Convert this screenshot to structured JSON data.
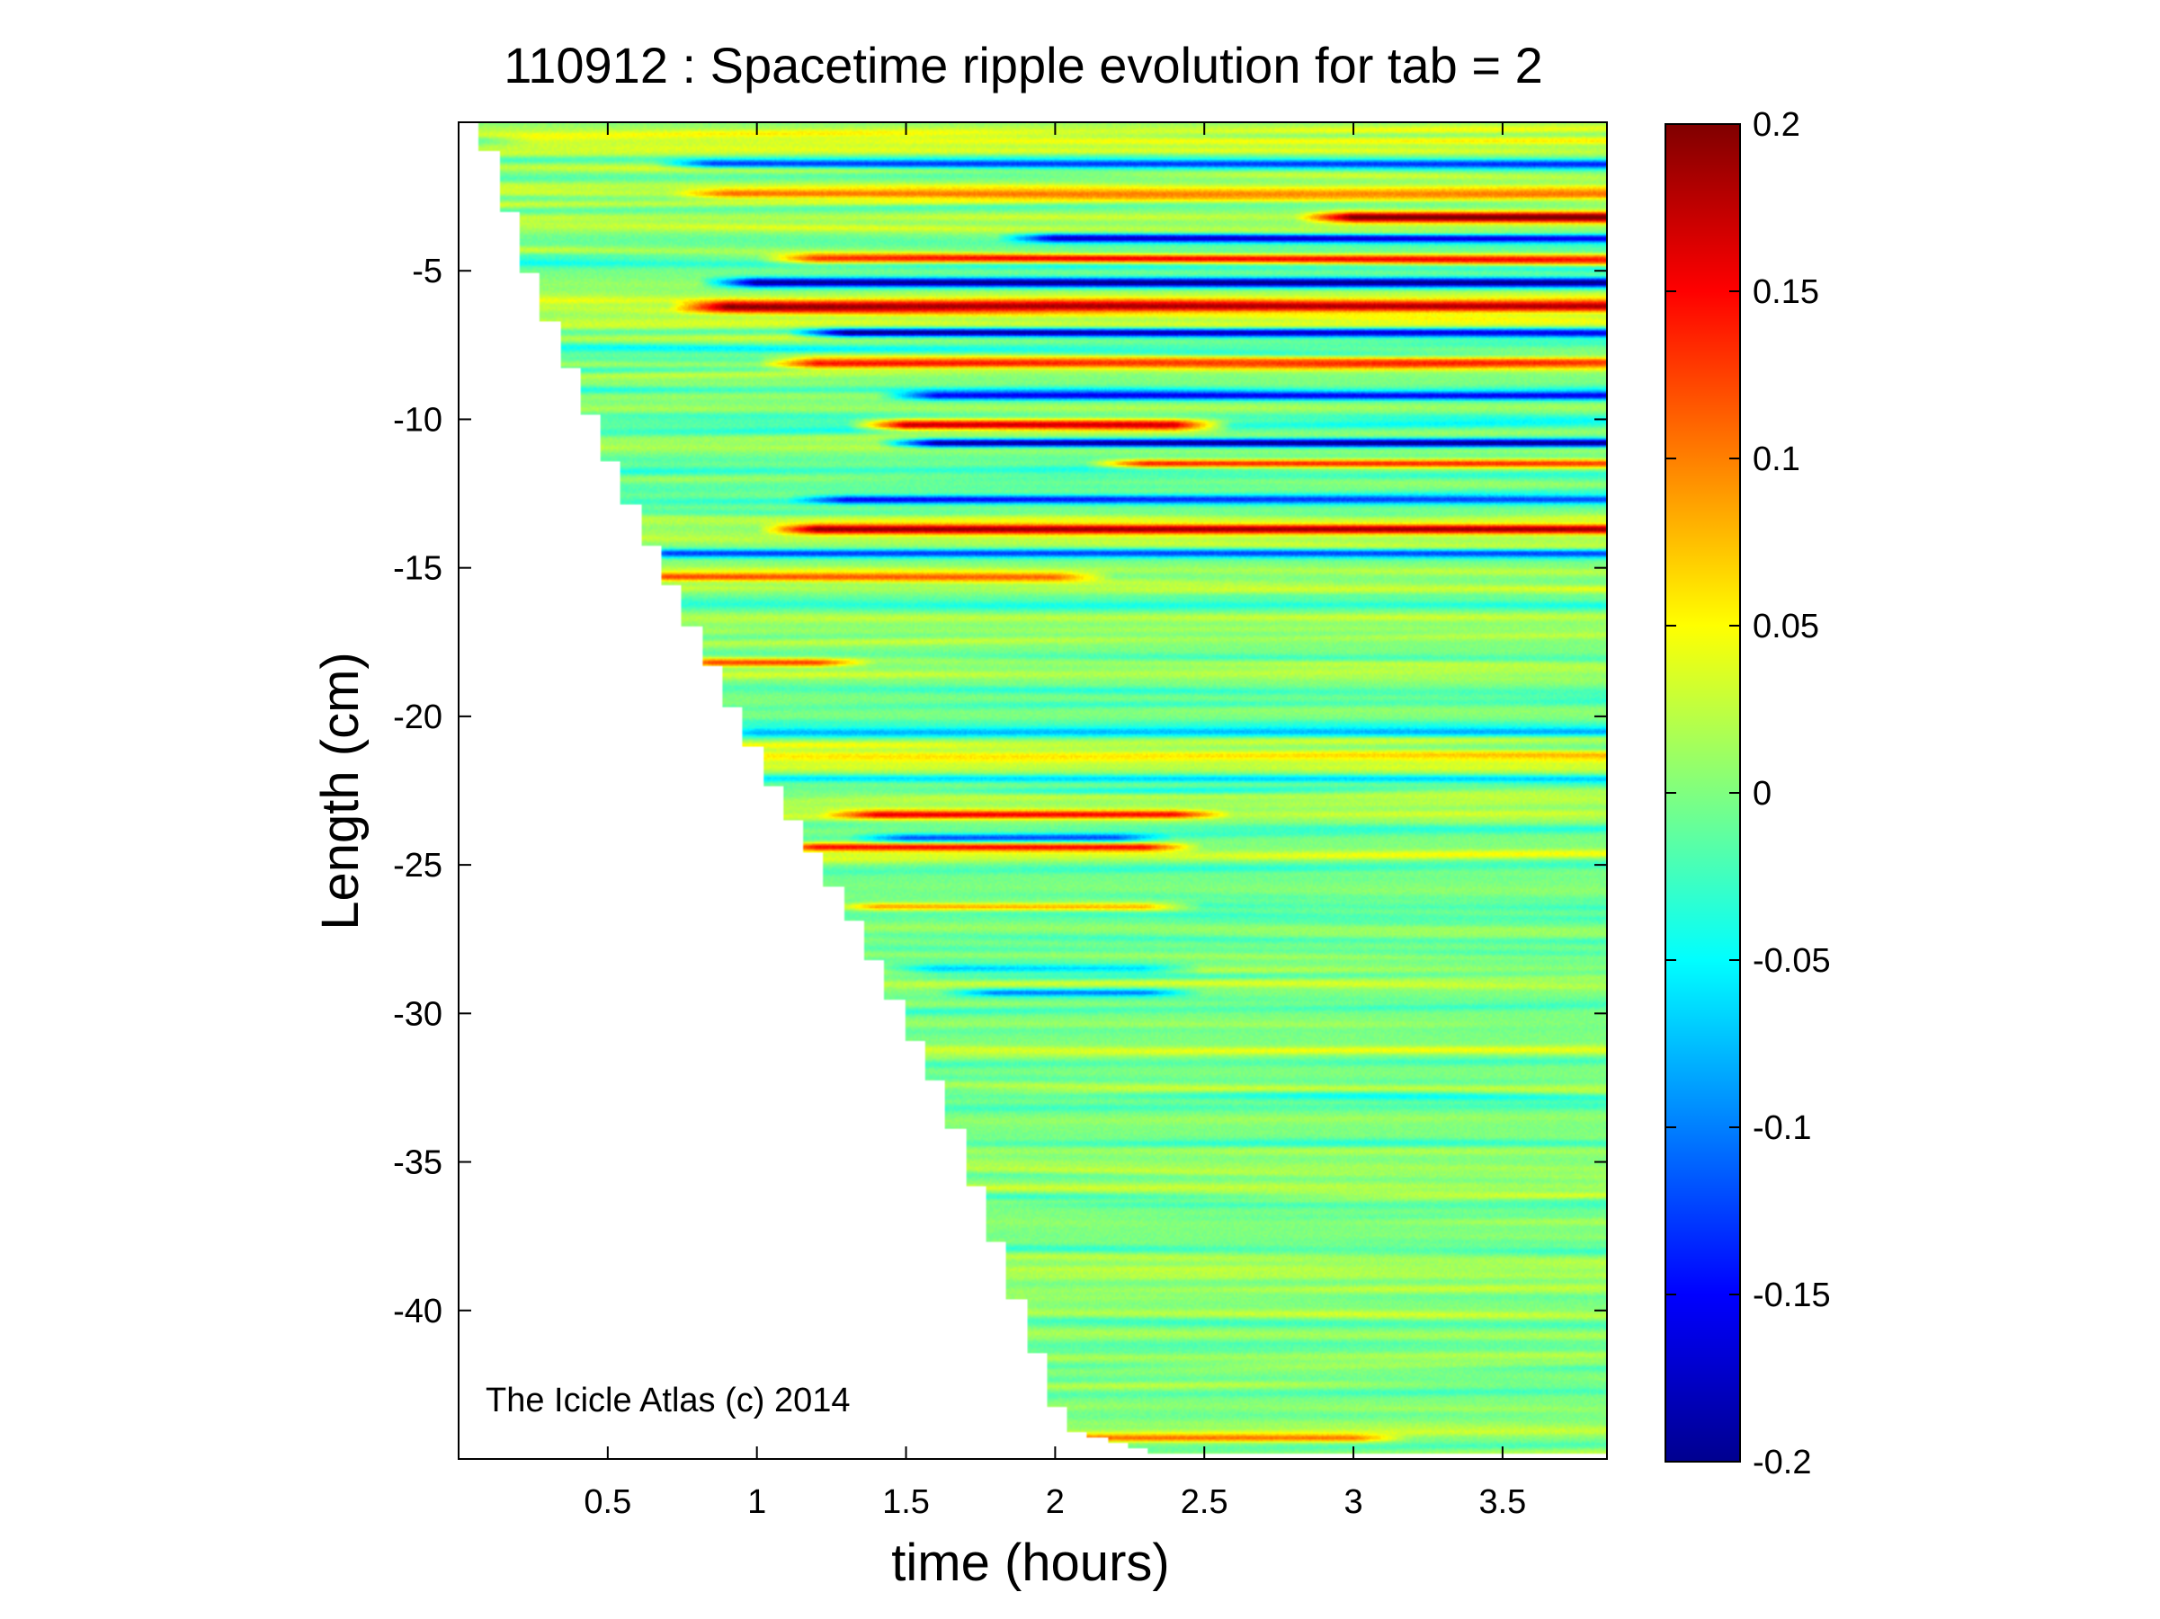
{
  "chart_data": {
    "type": "heatmap",
    "title": "110912 : Spacetime ripple evolution for tab = 2",
    "xlabel": "time (hours)",
    "ylabel": "Length (cm)",
    "xlim": [
      0,
      3.85
    ],
    "ylim": [
      -45,
      0
    ],
    "xticks": [
      0.5,
      1,
      1.5,
      2,
      2.5,
      3,
      3.5
    ],
    "xtick_labels": [
      "0.5",
      "1",
      "1.5",
      "2",
      "2.5",
      "3",
      "3.5"
    ],
    "yticks": [
      -5,
      -10,
      -15,
      -20,
      -25,
      -30,
      -35,
      -40
    ],
    "ytick_labels": [
      "-5",
      "-10",
      "-15",
      "-20",
      "-25",
      "-30",
      "-35",
      "-40"
    ],
    "colorbar": {
      "colormap": "jet",
      "range": [
        -0.2,
        0.2
      ],
      "ticks": [
        0.2,
        0.15,
        0.1,
        0.05,
        0,
        -0.05,
        -0.1,
        -0.15,
        -0.2
      ],
      "tick_labels": [
        "0.2",
        "0.15",
        "0.1",
        "0.05",
        "0",
        "-0.05",
        "-0.1",
        "-0.15",
        "-0.2"
      ]
    },
    "growth_front": {
      "description_time_hours": [
        0,
        0.07,
        0.2,
        0.5,
        0.8,
        1.0,
        1.3,
        1.6,
        1.85,
        2.0,
        2.3,
        3.85
      ],
      "length_cm": [
        0,
        -1,
        -5,
        -12,
        -18,
        -22,
        -27,
        -33,
        -40,
        -44,
        -44.8,
        -44.8
      ]
    },
    "features": [
      {
        "y": -0.6,
        "x_start": 0.25,
        "x_end": 3.85,
        "amp": 0.06,
        "width": 0.4
      },
      {
        "y": -1.4,
        "x_start": 0.85,
        "x_end": 3.85,
        "amp": -0.13,
        "width": 0.35
      },
      {
        "y": -2.4,
        "x_start": 0.9,
        "x_end": 3.85,
        "amp": 0.09,
        "width": 0.4
      },
      {
        "y": -3.2,
        "x_start": 3.0,
        "x_end": 3.85,
        "amp": 0.19,
        "width": 0.45
      },
      {
        "y": -3.9,
        "x_start": 2.0,
        "x_end": 3.85,
        "amp": -0.17,
        "width": 0.35
      },
      {
        "y": -4.6,
        "x_start": 1.2,
        "x_end": 3.85,
        "amp": 0.13,
        "width": 0.4
      },
      {
        "y": -5.4,
        "x_start": 1.0,
        "x_end": 3.85,
        "amp": -0.2,
        "width": 0.4
      },
      {
        "y": -6.2,
        "x_start": 0.9,
        "x_end": 3.85,
        "amp": 0.18,
        "width": 0.45
      },
      {
        "y": -7.1,
        "x_start": 1.3,
        "x_end": 3.85,
        "amp": -0.19,
        "width": 0.35
      },
      {
        "y": -8.1,
        "x_start": 1.2,
        "x_end": 3.85,
        "amp": 0.14,
        "width": 0.5
      },
      {
        "y": -9.2,
        "x_start": 1.6,
        "x_end": 3.85,
        "amp": -0.16,
        "width": 0.35
      },
      {
        "y": -10.2,
        "x_start": 1.5,
        "x_end": 2.4,
        "amp": 0.2,
        "width": 0.45
      },
      {
        "y": -10.8,
        "x_start": 1.6,
        "x_end": 3.85,
        "amp": -0.2,
        "width": 0.35
      },
      {
        "y": -11.5,
        "x_start": 2.3,
        "x_end": 3.85,
        "amp": 0.15,
        "width": 0.35
      },
      {
        "y": -12.7,
        "x_start": 1.3,
        "x_end": 3.85,
        "amp": -0.12,
        "width": 0.35
      },
      {
        "y": -13.7,
        "x_start": 1.2,
        "x_end": 3.85,
        "amp": 0.19,
        "width": 0.4
      },
      {
        "y": -14.5,
        "x_start": 0.7,
        "x_end": 3.85,
        "amp": -0.13,
        "width": 0.35
      },
      {
        "y": -15.3,
        "x_start": 0.7,
        "x_end": 2.0,
        "amp": 0.11,
        "width": 0.35
      },
      {
        "y": -16.3,
        "x_start": 0.6,
        "x_end": 3.85,
        "amp": -0.06,
        "width": 0.4
      },
      {
        "y": -18.2,
        "x_start": 0.85,
        "x_end": 1.2,
        "amp": 0.12,
        "width": 0.3
      },
      {
        "y": -20.5,
        "x_start": 1.0,
        "x_end": 3.85,
        "amp": -0.07,
        "width": 0.4
      },
      {
        "y": -21.3,
        "x_start": 1.0,
        "x_end": 3.85,
        "amp": 0.06,
        "width": 0.4
      },
      {
        "y": -22.1,
        "x_start": 1.0,
        "x_end": 3.85,
        "amp": -0.07,
        "width": 0.35
      },
      {
        "y": -23.3,
        "x_start": 1.4,
        "x_end": 2.4,
        "amp": 0.13,
        "width": 0.35
      },
      {
        "y": -24.1,
        "x_start": 1.5,
        "x_end": 2.2,
        "amp": -0.1,
        "width": 0.35
      },
      {
        "y": -24.4,
        "x_start": 1.2,
        "x_end": 2.3,
        "amp": 0.15,
        "width": 0.35
      },
      {
        "y": -26.4,
        "x_start": 1.4,
        "x_end": 2.3,
        "amp": 0.1,
        "width": 0.35
      },
      {
        "y": -28.5,
        "x_start": 1.6,
        "x_end": 2.3,
        "amp": -0.08,
        "width": 0.35
      },
      {
        "y": -29.3,
        "x_start": 1.8,
        "x_end": 2.3,
        "amp": -0.1,
        "width": 0.3
      },
      {
        "y": -44.3,
        "x_start": 2.1,
        "x_end": 3.0,
        "amp": 0.1,
        "width": 0.3
      }
    ],
    "annotation": "The Icicle Atlas (c) 2014",
    "grid": false,
    "legend": "colorbar-right"
  }
}
